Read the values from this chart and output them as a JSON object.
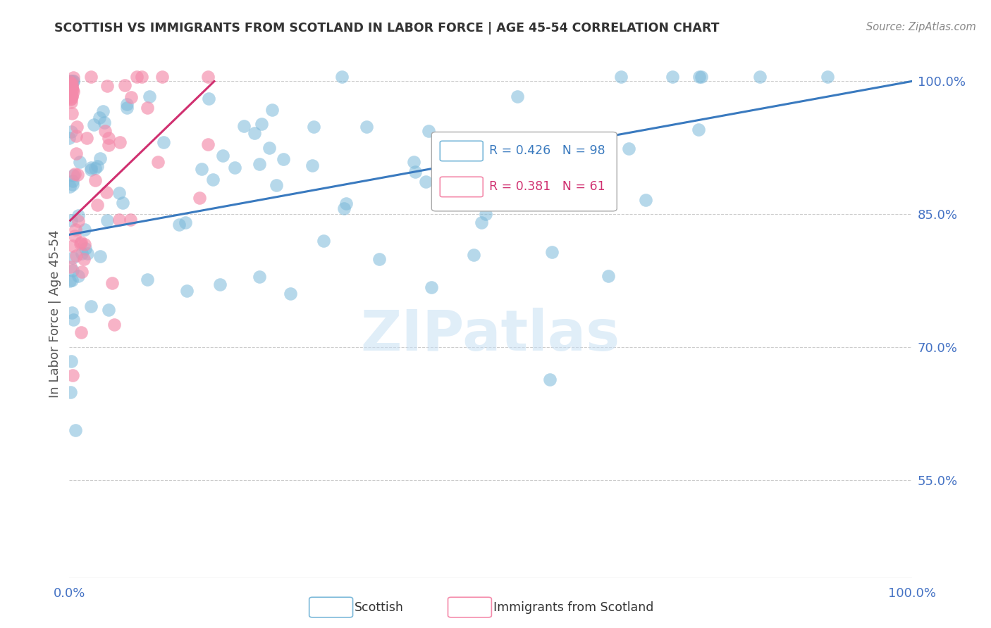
{
  "title": "SCOTTISH VS IMMIGRANTS FROM SCOTLAND IN LABOR FORCE | AGE 45-54 CORRELATION CHART",
  "source": "Source: ZipAtlas.com",
  "ylabel": "In Labor Force | Age 45-54",
  "watermark": "ZIPatlas",
  "xlim": [
    0.0,
    1.0
  ],
  "ylim": [
    0.44,
    1.035
  ],
  "yticks": [
    0.55,
    0.7,
    0.85,
    1.0
  ],
  "ytick_labels": [
    "55.0%",
    "70.0%",
    "85.0%",
    "100.0%"
  ],
  "xtick_labels": [
    "0.0%",
    "",
    "",
    "",
    "",
    "100.0%"
  ],
  "blue_R": 0.426,
  "blue_N": 98,
  "pink_R": 0.381,
  "pink_N": 61,
  "blue_color": "#7ab8d9",
  "pink_color": "#f48aaa",
  "blue_line_color": "#3a7abf",
  "pink_line_color": "#d03070",
  "blue_line_x": [
    0.0,
    1.0
  ],
  "blue_line_y": [
    0.827,
    1.0
  ],
  "pink_line_x": [
    0.001,
    0.172
  ],
  "pink_line_y": [
    0.843,
    1.0
  ],
  "background_color": "#ffffff",
  "grid_color": "#cccccc",
  "axis_label_color": "#4472c4",
  "title_color": "#333333",
  "ylabel_color": "#555555"
}
